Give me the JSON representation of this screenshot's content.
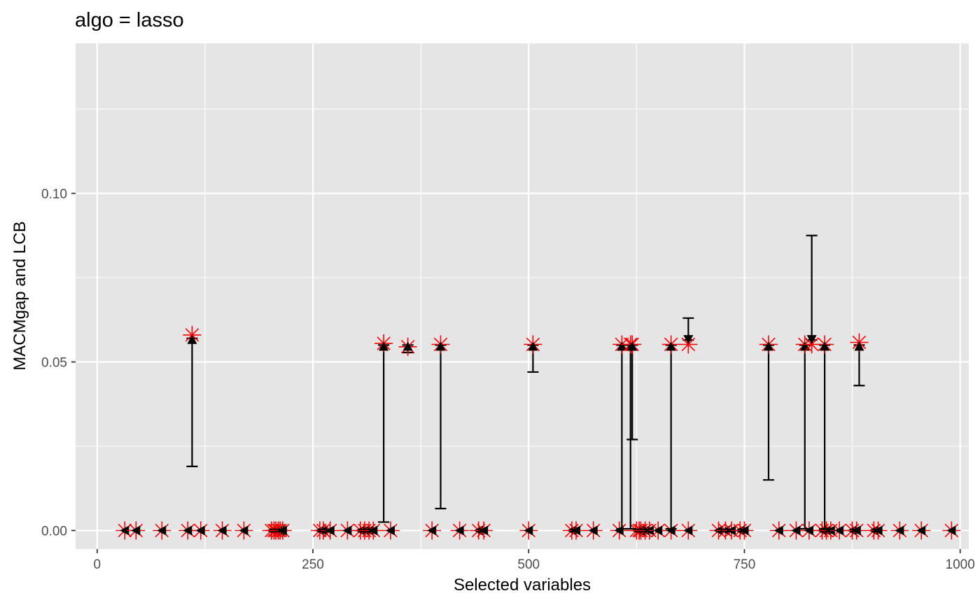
{
  "chart_data": {
    "type": "scatter",
    "title": "algo = lasso",
    "xlabel": "Selected variables",
    "ylabel": "MACMgap and LCB",
    "xlim": [
      -25,
      1010
    ],
    "ylim": [
      -0.0055,
      0.1445
    ],
    "x_ticks": [
      {
        "value": 0,
        "label": "0"
      },
      {
        "value": 250,
        "label": "250"
      },
      {
        "value": 500,
        "label": "500"
      },
      {
        "value": 750,
        "label": "750"
      },
      {
        "value": 1000,
        "label": "1000"
      }
    ],
    "y_ticks": [
      {
        "value": 0,
        "label": "0.00"
      },
      {
        "value": 0.05,
        "label": "0.05"
      },
      {
        "value": 0.1,
        "label": "0.10"
      }
    ],
    "background_color": "#e5e5e5",
    "grid": true,
    "macm_color": "#ff0000",
    "lcb_color": "#000000",
    "zero_x": [
      32,
      45,
      75,
      105,
      120,
      145,
      170,
      202,
      205,
      207,
      210,
      212,
      215,
      258,
      262,
      270,
      290,
      305,
      310,
      315,
      320,
      340,
      388,
      420,
      442,
      448,
      500,
      550,
      555,
      575,
      605,
      625,
      628,
      630,
      635,
      640,
      650,
      665,
      685,
      720,
      728,
      735,
      745,
      750,
      790,
      810,
      825,
      840,
      845,
      850,
      860,
      875,
      880,
      900,
      905,
      930,
      955,
      990
    ],
    "nonzero": [
      {
        "x": 110,
        "macm": 0.058,
        "lcb_bottom": 0.019,
        "lcb_top": 0.057
      },
      {
        "x": 332,
        "macm": 0.0555,
        "lcb_bottom": 0.0025,
        "lcb_top": 0.055
      },
      {
        "x": 360,
        "macm": 0.0545,
        "lcb_bottom": 0.0528,
        "lcb_top": 0.055
      },
      {
        "x": 398,
        "macm": 0.0552,
        "lcb_bottom": 0.0065,
        "lcb_top": 0.055
      },
      {
        "x": 505,
        "macm": 0.0552,
        "lcb_bottom": 0.047,
        "lcb_top": 0.055
      },
      {
        "x": 608,
        "macm": 0.0552,
        "lcb_bottom": 0.0005,
        "lcb_top": 0.055
      },
      {
        "x": 618,
        "macm": 0.0552,
        "lcb_bottom": 0.0005,
        "lcb_top": 0.055
      },
      {
        "x": 620,
        "macm": 0.0552,
        "lcb_bottom": 0.027,
        "lcb_top": 0.055
      },
      {
        "x": 665,
        "macm": 0.0552,
        "lcb_bottom": 0.0005,
        "lcb_top": 0.055
      },
      {
        "x": 685,
        "macm": 0.0552,
        "lcb_bottom": 0.0565,
        "lcb_top": 0.063
      },
      {
        "x": 778,
        "macm": 0.0552,
        "lcb_bottom": 0.015,
        "lcb_top": 0.055
      },
      {
        "x": 820,
        "macm": 0.0552,
        "lcb_bottom": 0.0005,
        "lcb_top": 0.055
      },
      {
        "x": 828,
        "macm": 0.0552,
        "lcb_bottom": 0.0565,
        "lcb_top": 0.0875
      },
      {
        "x": 843,
        "macm": 0.0552,
        "lcb_bottom": 0.0005,
        "lcb_top": 0.055
      },
      {
        "x": 883,
        "macm": 0.0558,
        "lcb_bottom": 0.043,
        "lcb_top": 0.055
      }
    ]
  }
}
